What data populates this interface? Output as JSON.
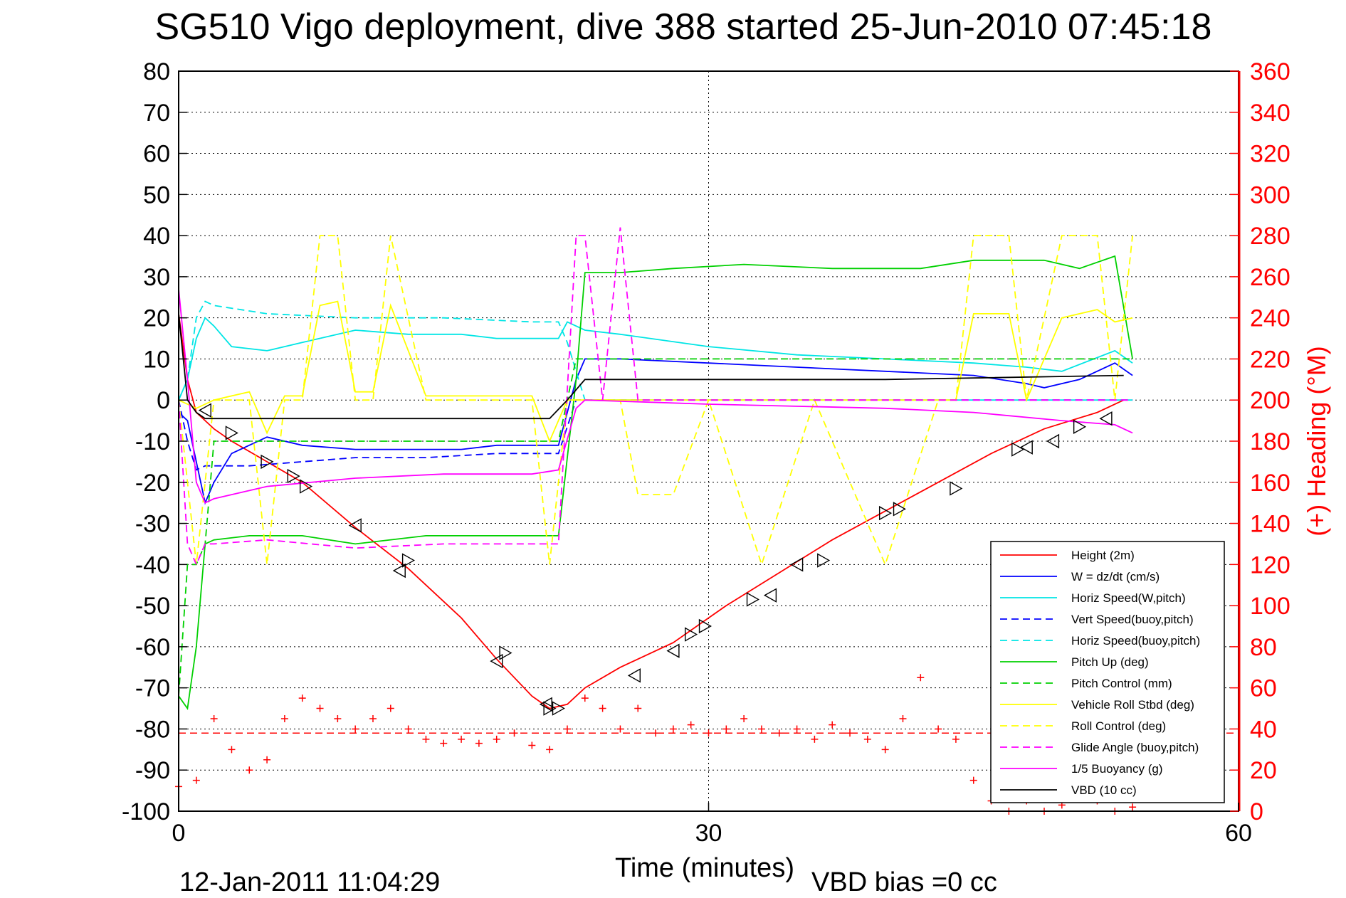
{
  "chart_data": {
    "type": "line",
    "title": "SG510 Vigo deployment, dive 388 started 25-Jun-2010 07:45:18",
    "xlabel": "Time (minutes)",
    "ylabel_right": "(+) Heading (°M)",
    "footer_left": "12-Jan-2011 11:04:29",
    "footer_right": "VBD bias =0 cc",
    "xlim": [
      0,
      60
    ],
    "ylim_left": [
      -100,
      80
    ],
    "ylim_right": [
      0,
      360
    ],
    "x_ticks": [
      0,
      30,
      60
    ],
    "y_ticks_left": [
      80,
      70,
      60,
      50,
      40,
      30,
      20,
      10,
      0,
      -10,
      -20,
      -30,
      -40,
      -50,
      -60,
      -70,
      -80,
      -90,
      -100
    ],
    "y_ticks_right": [
      360,
      340,
      320,
      300,
      280,
      260,
      240,
      220,
      200,
      180,
      160,
      140,
      120,
      100,
      80,
      60,
      40,
      20,
      0
    ],
    "grid": true,
    "legend_position": "bottom-right",
    "colors": {
      "axis": "#000000",
      "right_axis": "#ff0000"
    },
    "series": [
      {
        "name": "Height (2m)",
        "color": "#ff0000",
        "style": "solid",
        "x": [
          0,
          0.5,
          1,
          1.5,
          2,
          3,
          5,
          7,
          10,
          13,
          16,
          18,
          20,
          21,
          22,
          23,
          25,
          28,
          31,
          34,
          37,
          40,
          43,
          46,
          49,
          52,
          53.5
        ],
        "y": [
          21,
          5,
          -3,
          -5,
          -7,
          -10,
          -15,
          -20,
          -31,
          -41,
          -53,
          -63,
          -72,
          -75,
          -74,
          -70,
          -65,
          -59,
          -50,
          -42,
          -34,
          -27,
          -20,
          -13,
          -7,
          -3,
          0
        ]
      },
      {
        "name": "W = dz/dt (cm/s)",
        "color": "#0000ff",
        "style": "solid",
        "x": [
          0,
          0.5,
          1,
          1.5,
          2,
          3,
          5,
          7,
          10,
          13,
          16,
          18,
          20,
          21.5,
          22.5,
          23,
          25,
          30,
          35,
          40,
          45,
          48,
          49,
          51,
          53,
          54
        ],
        "y": [
          -3,
          -5,
          -15,
          -25,
          -20,
          -13,
          -9,
          -11,
          -12,
          -12,
          -12,
          -11,
          -11,
          -11,
          5,
          10,
          10,
          9,
          8,
          7,
          6,
          4,
          3,
          5,
          9,
          6
        ]
      },
      {
        "name": "Horiz Speed(W,pitch)",
        "color": "#00e5e5",
        "style": "solid",
        "x": [
          0,
          0.5,
          1,
          1.5,
          2,
          3,
          5,
          7,
          10,
          13,
          16,
          18,
          20,
          21.5,
          22,
          23,
          25,
          30,
          35,
          40,
          45,
          48,
          50,
          53,
          54
        ],
        "y": [
          0,
          5,
          15,
          20,
          18,
          13,
          12,
          14,
          17,
          16,
          16,
          15,
          15,
          15,
          19,
          17,
          16,
          13,
          11,
          10,
          9,
          8,
          7,
          12,
          9
        ]
      },
      {
        "name": "Vert Speed(buoy,pitch)",
        "color": "#0000ff",
        "style": "dashed",
        "x": [
          0,
          0.5,
          1,
          1.5,
          2,
          4,
          7,
          10,
          14,
          18,
          21.5,
          22.5,
          23,
          24,
          54
        ],
        "y": [
          0,
          -10,
          -17,
          -16,
          -16,
          -16,
          -15,
          -14,
          -14,
          -13,
          -13,
          0,
          0,
          0,
          0
        ]
      },
      {
        "name": "Horiz Speed(buoy,pitch)",
        "color": "#00e5e5",
        "style": "dashed",
        "x": [
          0,
          0.5,
          1,
          1.5,
          2,
          5,
          10,
          15,
          20,
          21.5,
          22,
          23,
          30,
          40,
          54
        ],
        "y": [
          0,
          5,
          20,
          24,
          23,
          21,
          20,
          20,
          19,
          19,
          14,
          0,
          0,
          0,
          0
        ]
      },
      {
        "name": "Pitch Up (deg)",
        "color": "#00d000",
        "style": "solid",
        "x": [
          0,
          0.5,
          1,
          1.5,
          2,
          4,
          7,
          10,
          14,
          18,
          21.5,
          22.5,
          23,
          25,
          28,
          32,
          37,
          42,
          45,
          49,
          51,
          53,
          54
        ],
        "y": [
          -72,
          -75,
          -60,
          -35,
          -34,
          -33,
          -33,
          -35,
          -33,
          -33,
          -33,
          5,
          31,
          31,
          32,
          33,
          32,
          32,
          34,
          34,
          32,
          35,
          10
        ]
      },
      {
        "name": "Pitch Control (mm)",
        "color": "#00d000",
        "style": "dashed",
        "x": [
          0,
          0.5,
          1,
          1.5,
          2,
          5,
          10,
          15,
          21.5,
          22.5,
          23,
          30,
          40,
          54
        ],
        "y": [
          -72,
          -40,
          -40,
          -35,
          -10,
          -10,
          -10,
          -10,
          -10,
          10,
          10,
          10,
          10,
          10
        ]
      },
      {
        "name": "Vehicle Roll Stbd (deg)",
        "color": "#ffff00",
        "style": "solid",
        "x": [
          0,
          1,
          2,
          3,
          4,
          5,
          6,
          7,
          8,
          9,
          10,
          11,
          12,
          14,
          17,
          20,
          21,
          22,
          25,
          30,
          40,
          43,
          44,
          45,
          47,
          48,
          50,
          52,
          53,
          54
        ],
        "y": [
          0,
          -2,
          0,
          1,
          2,
          -8,
          1,
          1,
          23,
          24,
          2,
          2,
          23,
          1,
          1,
          1,
          -10,
          0,
          0,
          0,
          0,
          0,
          0,
          21,
          21,
          0,
          20,
          22,
          19,
          20
        ]
      },
      {
        "name": "Roll Control (deg)",
        "color": "#ffff00",
        "style": "dashed",
        "x": [
          0,
          1,
          2,
          3,
          4,
          5,
          6,
          7,
          8,
          9,
          10,
          11,
          12,
          14,
          17,
          20,
          21,
          22,
          25,
          26,
          28,
          30,
          33,
          36,
          40,
          43,
          44,
          45,
          47,
          48,
          50,
          52,
          53,
          54
        ],
        "y": [
          0,
          -40,
          0,
          0,
          0,
          -40,
          0,
          0,
          40,
          40,
          0,
          0,
          40,
          0,
          0,
          0,
          -40,
          0,
          0,
          -23,
          -23,
          0,
          -40,
          0,
          -40,
          0,
          0,
          40,
          40,
          0,
          40,
          40,
          0,
          40
        ]
      },
      {
        "name": "Glide Angle (buoy,pitch)",
        "color": "#ff00ff",
        "style": "dashed",
        "x": [
          0,
          0.5,
          1,
          1.5,
          2,
          5,
          10,
          15,
          20,
          21.5,
          22.5,
          23,
          24,
          25,
          26,
          27,
          30,
          40,
          54
        ],
        "y": [
          0,
          -35,
          -40,
          -35,
          -35,
          -34,
          -36,
          -35,
          -35,
          -35,
          40,
          40,
          0,
          42,
          0,
          0,
          0,
          0,
          0
        ]
      },
      {
        "name": "1/5 Buoyancy (g)",
        "color": "#ff00ff",
        "style": "solid",
        "x": [
          0,
          0.5,
          1,
          1.5,
          2,
          5,
          10,
          15,
          20,
          21.5,
          22.5,
          23,
          30,
          40,
          45,
          50,
          53,
          54
        ],
        "y": [
          27,
          5,
          -20,
          -25,
          -24,
          -21,
          -19,
          -18,
          -18,
          -17,
          -2,
          0,
          -1,
          -2,
          -3,
          -5,
          -6,
          -8
        ]
      },
      {
        "name": "VBD (10 cc)",
        "color": "#000000",
        "style": "solid",
        "x": [
          0,
          0.5,
          1,
          1.5,
          2,
          10,
          21,
          22,
          23,
          30,
          40,
          53.5
        ],
        "y": [
          21,
          0,
          -3,
          -4.5,
          -4.5,
          -4.5,
          -4.5,
          0,
          5,
          5,
          5,
          6
        ]
      },
      {
        "name": "Heading",
        "color": "#ff0000",
        "style": "markers-plus",
        "axis": "right",
        "x": [
          0,
          1,
          2,
          3,
          4,
          5,
          6,
          7,
          8,
          9,
          10,
          11,
          12,
          13,
          14,
          15,
          16,
          17,
          18,
          19,
          20,
          21,
          22,
          23,
          24,
          25,
          26,
          27,
          28,
          29,
          30,
          31,
          32,
          33,
          34,
          35,
          36,
          37,
          38,
          39,
          40,
          41,
          42,
          43,
          44,
          45,
          46,
          47,
          48,
          49,
          50,
          51,
          52,
          53,
          54
        ],
        "y": [
          12,
          15,
          45,
          30,
          20,
          25,
          45,
          55,
          50,
          45,
          40,
          45,
          50,
          40,
          35,
          33,
          35,
          33,
          35,
          38,
          32,
          30,
          40,
          55,
          50,
          40,
          50,
          38,
          40,
          42,
          38,
          40,
          45,
          40,
          38,
          40,
          35,
          42,
          38,
          35,
          30,
          45,
          65,
          40,
          35,
          15,
          5,
          0,
          5,
          0,
          3,
          10,
          5,
          0,
          2
        ]
      }
    ],
    "horizontal_reference": {
      "axis": "right",
      "y": 38,
      "color": "#ff0000",
      "style": "dashed"
    },
    "triangle_markers": {
      "left_pointing": [
        [
          1.5,
          -2.5
        ],
        [
          10,
          -30.5
        ],
        [
          12.5,
          -41.5
        ],
        [
          18,
          -63.5
        ],
        [
          20.8,
          -74
        ],
        [
          25.8,
          -67
        ],
        [
          28,
          -61
        ],
        [
          33.5,
          -47.5
        ],
        [
          35,
          -40
        ],
        [
          48,
          -11.5
        ],
        [
          49.5,
          -10
        ],
        [
          52.5,
          -4.5
        ]
      ],
      "right_pointing": [
        [
          3,
          -8
        ],
        [
          5,
          -15
        ],
        [
          6.5,
          -18.5
        ],
        [
          7.2,
          -21
        ],
        [
          13,
          -39
        ],
        [
          18.5,
          -61.5
        ],
        [
          21,
          -75
        ],
        [
          21.5,
          -75
        ],
        [
          29,
          -57
        ],
        [
          29.8,
          -55
        ],
        [
          32.5,
          -48.5
        ],
        [
          36.5,
          -39
        ],
        [
          40,
          -27.5
        ],
        [
          40.8,
          -26.5
        ],
        [
          44,
          -21.5
        ],
        [
          47.5,
          -12
        ],
        [
          51,
          -6.5
        ]
      ]
    }
  }
}
